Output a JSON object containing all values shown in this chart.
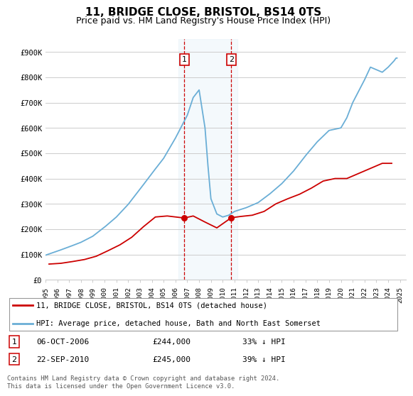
{
  "title": "11, BRIDGE CLOSE, BRISTOL, BS14 0TS",
  "subtitle": "Price paid vs. HM Land Registry's House Price Index (HPI)",
  "footer": "Contains HM Land Registry data © Crown copyright and database right 2024.\nThis data is licensed under the Open Government Licence v3.0.",
  "legend_line1": "11, BRIDGE CLOSE, BRISTOL, BS14 0TS (detached house)",
  "legend_line2": "HPI: Average price, detached house, Bath and North East Somerset",
  "transaction1_date": "06-OCT-2006",
  "transaction1_price": "£244,000",
  "transaction1_hpi": "33% ↓ HPI",
  "transaction2_date": "22-SEP-2010",
  "transaction2_price": "£245,000",
  "transaction2_hpi": "39% ↓ HPI",
  "hpi_color": "#6aaed6",
  "price_color": "#cc0000",
  "highlight_color": "#d6e8f5",
  "vline_color": "#cc0000",
  "grid_color": "#cccccc",
  "background_color": "#ffffff",
  "ylim": [
    0,
    950000
  ],
  "yticks": [
    0,
    100000,
    200000,
    300000,
    400000,
    500000,
    600000,
    700000,
    800000,
    900000
  ],
  "ytick_labels": [
    "£0",
    "£100K",
    "£200K",
    "£300K",
    "£400K",
    "£500K",
    "£600K",
    "£700K",
    "£800K",
    "£900K"
  ],
  "xlim_start": 1995.0,
  "xlim_end": 2025.5,
  "xtick_years": [
    1995,
    1996,
    1997,
    1998,
    1999,
    2000,
    2001,
    2002,
    2003,
    2004,
    2005,
    2006,
    2007,
    2008,
    2009,
    2010,
    2011,
    2012,
    2013,
    2014,
    2015,
    2016,
    2017,
    2018,
    2019,
    2020,
    2021,
    2022,
    2023,
    2024,
    2025
  ],
  "transaction1_x": 2006.75,
  "transaction2_x": 2010.72,
  "transaction1_y": 244000,
  "transaction2_y": 245000,
  "price_x": [
    1995.3,
    1996.3,
    1997.3,
    1998.3,
    1999.3,
    2000.3,
    2001.3,
    2002.3,
    2003.3,
    2004.3,
    2005.3,
    2006.75,
    2007.5,
    2008.5,
    2009.5,
    2010.72,
    2011.5,
    2012.5,
    2013.5,
    2014.5,
    2015.5,
    2016.5,
    2017.5,
    2018.5,
    2019.5,
    2020.5,
    2021.5,
    2022.5,
    2023.5,
    2024.3
  ],
  "price_y": [
    62000,
    65000,
    72000,
    80000,
    93000,
    115000,
    138000,
    168000,
    210000,
    248000,
    252000,
    244000,
    252000,
    228000,
    205000,
    245000,
    250000,
    255000,
    270000,
    300000,
    320000,
    338000,
    362000,
    390000,
    400000,
    400000,
    420000,
    440000,
    460000,
    460000
  ]
}
